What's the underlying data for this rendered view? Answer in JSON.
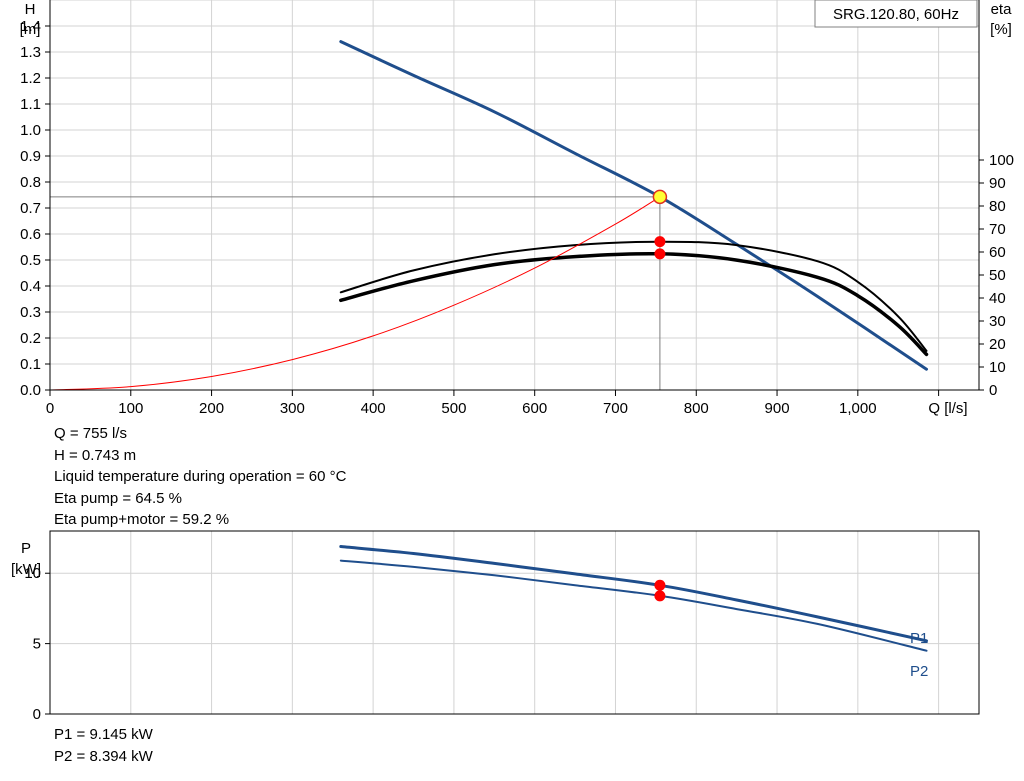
{
  "chart_data": [
    {
      "type": "line",
      "title": "SRG.120.80, 60Hz",
      "xlabel": "Q [l/s]",
      "ylabel": [
        "H",
        "[m]"
      ],
      "y2label": [
        "eta",
        "[%]"
      ],
      "xlim": [
        0,
        1150
      ],
      "ylim": [
        0,
        1.5
      ],
      "y2lim": [
        0,
        100
      ],
      "grid": true,
      "x_ticks": [
        0,
        100,
        200,
        300,
        400,
        500,
        600,
        700,
        800,
        900,
        1000
      ],
      "x_tick_labels": [
        "0",
        "100",
        "200",
        "300",
        "400",
        "500",
        "600",
        "700",
        "800",
        "900",
        "1,000"
      ],
      "y_ticks": [
        0.0,
        0.1,
        0.2,
        0.3,
        0.4,
        0.5,
        0.6,
        0.7,
        0.8,
        0.9,
        1.0,
        1.1,
        1.2,
        1.3,
        1.4
      ],
      "y_tick_labels": [
        "0.0",
        "0.1",
        "0.2",
        "0.3",
        "0.4",
        "0.5",
        "0.6",
        "0.7",
        "0.8",
        "0.9",
        "1.0",
        "1.1",
        "1.2",
        "1.3",
        "1.4"
      ],
      "y2_ticks": [
        0,
        10,
        20,
        30,
        40,
        50,
        60,
        70,
        80,
        90,
        100
      ],
      "y2_tick_labels": [
        "0",
        "10",
        "20",
        "30",
        "40",
        "50",
        "60",
        "70",
        "80",
        "90",
        "100"
      ],
      "series": [
        {
          "axis": "y",
          "color": "#1f4e8c",
          "x": [
            360,
            450,
            550,
            650,
            755,
            850,
            950,
            1085
          ],
          "y": [
            1.34,
            1.21,
            1.07,
            0.91,
            0.743,
            0.56,
            0.36,
            0.08
          ]
        },
        {
          "axis": "y2",
          "color": "#000000",
          "x": [
            360,
            450,
            550,
            650,
            755,
            850,
            950,
            1000,
            1050,
            1085
          ],
          "y": [
            42.5,
            52,
            59,
            63,
            64.5,
            63,
            56,
            47,
            32,
            17
          ]
        },
        {
          "axis": "y2",
          "color": "#000000",
          "x": [
            360,
            450,
            550,
            650,
            755,
            850,
            950,
            1000,
            1050,
            1085
          ],
          "y": [
            39,
            47.5,
            54.5,
            58,
            59.2,
            56.5,
            49,
            41,
            28,
            15.5
          ]
        },
        {
          "axis": "y",
          "color": "#ff0000",
          "x": [
            0,
            100,
            200,
            300,
            400,
            500,
            600,
            700,
            755
          ],
          "y": [
            0,
            0.013,
            0.052,
            0.117,
            0.208,
            0.326,
            0.469,
            0.638,
            0.743
          ]
        }
      ],
      "operating_point": {
        "x": 755,
        "y": 0.743
      },
      "eta_points": [
        64.5,
        59.2
      ]
    },
    {
      "type": "line",
      "ylabel": [
        "P",
        "[kW]"
      ],
      "xlim": [
        0,
        1150
      ],
      "ylim": [
        0,
        13
      ],
      "grid": true,
      "x_ticks": [
        0,
        100,
        200,
        300,
        400,
        500,
        600,
        700,
        800,
        900,
        1000
      ],
      "y_ticks": [
        0,
        5,
        10
      ],
      "y_tick_labels": [
        "0",
        "5",
        "10"
      ],
      "series": [
        {
          "name": "P1",
          "color": "#1f4e8c",
          "x": [
            360,
            450,
            550,
            650,
            755,
            850,
            950,
            1085
          ],
          "y": [
            11.9,
            11.4,
            10.7,
            9.95,
            9.145,
            8.1,
            6.9,
            5.2
          ]
        },
        {
          "name": "P2",
          "color": "#1f4e8c",
          "x": [
            360,
            450,
            550,
            650,
            755,
            850,
            950,
            1085
          ],
          "y": [
            10.9,
            10.45,
            9.85,
            9.15,
            8.394,
            7.45,
            6.4,
            4.5
          ]
        }
      ],
      "points": [
        9.145,
        8.394
      ],
      "point_x": 755
    }
  ],
  "info_lines": [
    "Q = 755 l/s",
    "H = 0.743 m",
    "Liquid temperature during operation = 60 °C",
    "Eta pump = 64.5 %",
    "Eta pump+motor = 59.2 %"
  ],
  "power_lines": [
    "P1 = 9.145 kW",
    "P2 = 8.394 kW"
  ]
}
